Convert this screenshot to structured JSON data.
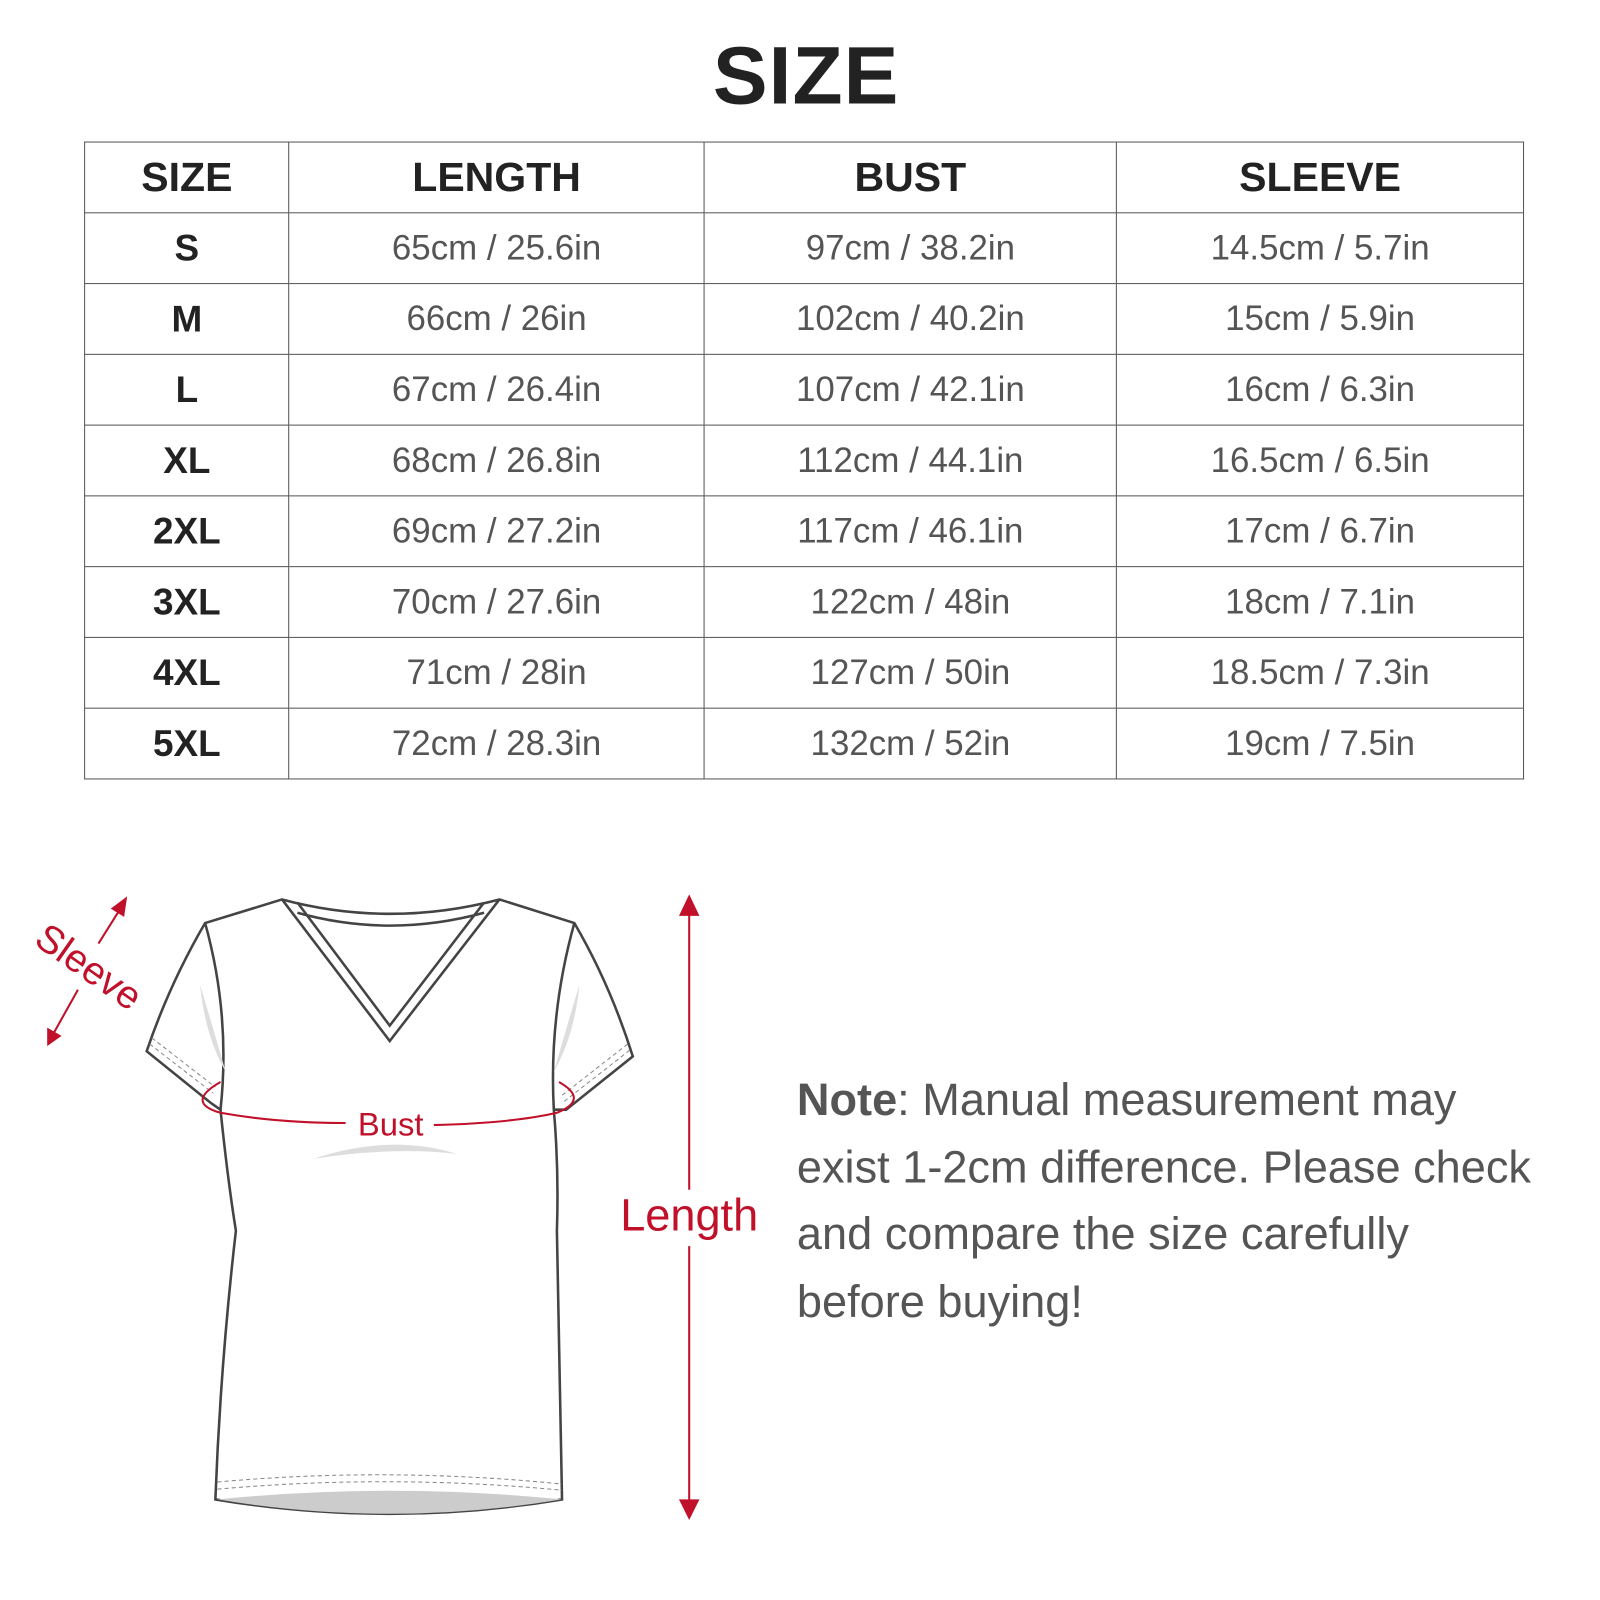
{
  "title": "SIZE",
  "table": {
    "headers": [
      "SIZE",
      "LENGTH",
      "BUST",
      "SLEEVE"
    ],
    "rows": [
      [
        "S",
        "65cm / 25.6in",
        "97cm / 38.2in",
        "14.5cm / 5.7in"
      ],
      [
        "M",
        "66cm / 26in",
        "102cm / 40.2in",
        "15cm / 5.9in"
      ],
      [
        "L",
        "67cm / 26.4in",
        "107cm / 42.1in",
        "16cm / 6.3in"
      ],
      [
        "XL",
        "68cm / 26.8in",
        "112cm / 44.1in",
        "16.5cm / 6.5in"
      ],
      [
        "2XL",
        "69cm / 27.2in",
        "117cm / 46.1in",
        "17cm / 6.7in"
      ],
      [
        "3XL",
        "70cm / 27.6in",
        "122cm / 48in",
        "18cm / 7.1in"
      ],
      [
        "4XL",
        "71cm / 28in",
        "127cm / 50in",
        "18.5cm / 7.3in"
      ],
      [
        "5XL",
        "72cm / 28.3in",
        "132cm / 52in",
        "19cm / 7.5in"
      ]
    ]
  },
  "diagram": {
    "sleeve_label": "Sleeve",
    "bust_label": "Bust",
    "length_label": "Length",
    "accent_color": "#c0102a"
  },
  "note": {
    "label": "Note",
    "text": ": Manual measurement may exist 1-2cm difference. Please check and compare the size carefully before buying!"
  }
}
